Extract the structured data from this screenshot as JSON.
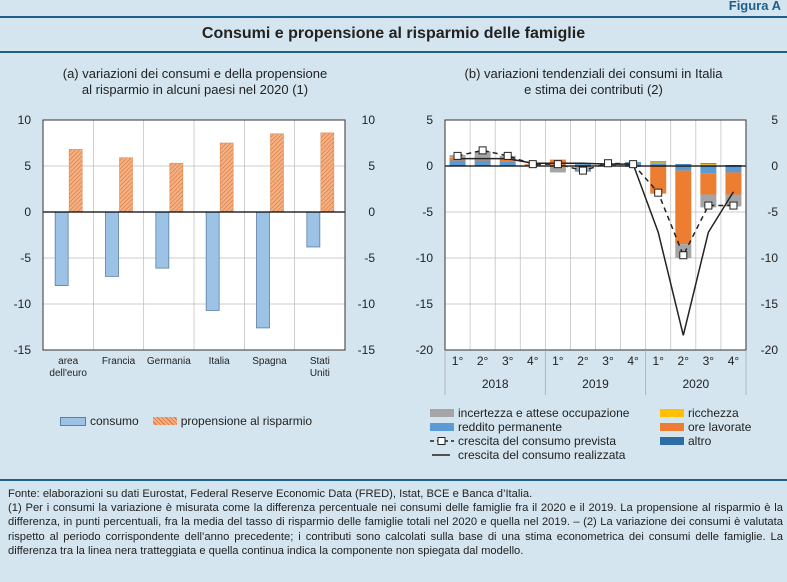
{
  "figure_label": "Figura A",
  "title": "Consumi e propensione al risparmio delle famiglie",
  "chart_data": [
    {
      "type": "bar",
      "subtitle_line1": "(a) variazioni dei consumi e della propensione",
      "subtitle_line2": "al risparmio in alcuni paesi nel 2020 (1)",
      "categories": [
        [
          "area",
          "dell'euro"
        ],
        [
          "Francia"
        ],
        [
          "Germania"
        ],
        [
          "Italia"
        ],
        [
          "Spagna"
        ],
        [
          "Stati",
          "Uniti"
        ]
      ],
      "series": [
        {
          "name": "consumo",
          "color": "#9cc3e6",
          "values": [
            -8.0,
            -7.0,
            -6.1,
            -10.7,
            -12.6,
            -3.8
          ]
        },
        {
          "name": "propensione al risparmio",
          "color": "#f4b183",
          "pattern": "hatched",
          "values": [
            6.8,
            5.9,
            5.3,
            7.5,
            8.5,
            8.6
          ]
        }
      ],
      "ylim": [
        -15,
        10
      ],
      "yticks": [
        10,
        5,
        0,
        -5,
        -10,
        -15
      ],
      "grid": true,
      "legend": "bottom"
    },
    {
      "type": "bar",
      "stacked": true,
      "subtitle_line1": "(b) variazioni tendenziali dei consumi in Italia",
      "subtitle_line2": "e stima dei contributi (2)",
      "quarters": [
        "1°",
        "2°",
        "3°",
        "4°",
        "1°",
        "2°",
        "3°",
        "4°",
        "1°",
        "2°",
        "3°",
        "4°"
      ],
      "years": [
        "2018",
        "2019",
        "2020"
      ],
      "series": [
        {
          "name": "reddito permanente",
          "color": "#5b9bd5",
          "values": [
            0.6,
            0.6,
            0.5,
            0.1,
            0.1,
            0.2,
            0.2,
            0.3,
            0.3,
            -0.5,
            -0.8,
            -0.7
          ]
        },
        {
          "name": "ore lavorate",
          "color": "#ed7d31",
          "values": [
            0.3,
            0.1,
            0.3,
            0.1,
            0.6,
            0.0,
            0.0,
            0.0,
            -3.0,
            -8.0,
            -2.3,
            -2.4
          ]
        },
        {
          "name": "ricchezza",
          "color": "#ffc000",
          "values": [
            0.0,
            0.0,
            0.0,
            0.0,
            0.0,
            0.0,
            0.0,
            0.0,
            0.1,
            0.1,
            0.2,
            0.0
          ]
        },
        {
          "name": "incertezza e attese occupazione",
          "color": "#a5a5a5",
          "values": [
            0.3,
            0.9,
            0.3,
            0.0,
            -0.7,
            -0.5,
            0.1,
            -0.1,
            0.0,
            -1.5,
            -1.4,
            -1.3
          ]
        },
        {
          "name": "altro",
          "color": "#2e6ca4",
          "values": [
            0.0,
            0.0,
            0.0,
            0.0,
            0.0,
            -0.1,
            0.0,
            0.1,
            0.1,
            0.1,
            0.1,
            0.1
          ]
        }
      ],
      "lines": [
        {
          "name": "crescita del consumo prevista",
          "style": "dashed-marker",
          "values": [
            1.1,
            1.7,
            1.1,
            0.2,
            0.2,
            -0.5,
            0.3,
            0.2,
            -2.9,
            -9.7,
            -4.3,
            -4.3
          ]
        },
        {
          "name": "crescita del consumo realizzata",
          "style": "solid",
          "values": [
            0.8,
            0.8,
            0.8,
            0.3,
            0.3,
            0.3,
            0.2,
            0.2,
            -7.2,
            -18.4,
            -7.2,
            -2.8
          ]
        }
      ],
      "ylim": [
        -20,
        5
      ],
      "yticks": [
        5,
        0,
        -5,
        -10,
        -15,
        -20
      ],
      "grid": true,
      "legend": "bottom"
    }
  ],
  "legend_a": [
    "consumo",
    "propensione al risparmio"
  ],
  "legend_b": {
    "col1": [
      "incertezza e attese occupazione",
      "reddito permanente",
      "crescita del consumo prevista",
      "crescita del consumo realizzata"
    ],
    "col2": [
      "ricchezza",
      "ore lavorate",
      "altro"
    ]
  },
  "notes": {
    "source": "Fonte: elaborazioni su dati Eurostat, Federal Reserve Economic Data (FRED), Istat, BCE e Banca d’Italia.",
    "note": "(1) Per i consumi la variazione è misurata come la differenza percentuale nei consumi delle famiglie fra il 2020 e il 2019. La propensione al risparmio è la differenza, in punti percentuali, fra la media del tasso di risparmio delle famiglie totali nel 2020 e quella nel 2019. – (2) La variazione dei consumi è valutata rispetto al periodo corrispondente dell’anno precedente; i contributi sono calcolati sulla base di una stima econometrica dei consumi delle famiglie. La differenza tra la linea nera tratteggiata e quella continua indica la componente non spiegata dal modello."
  }
}
